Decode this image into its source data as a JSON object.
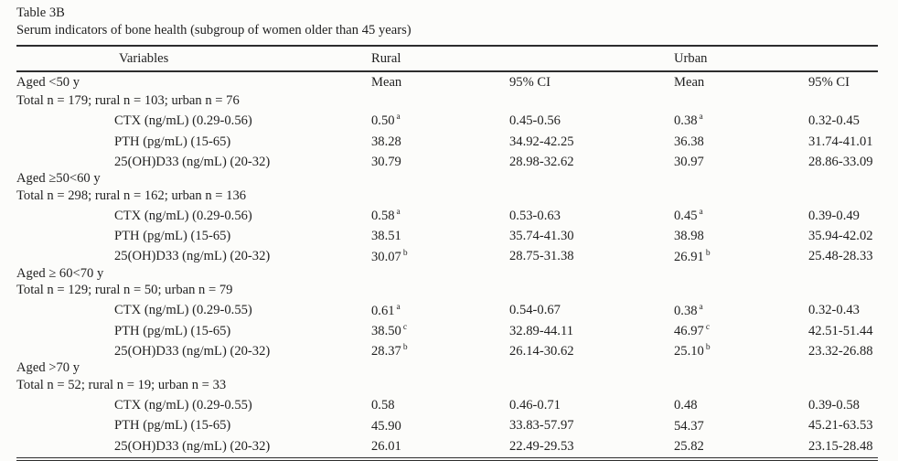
{
  "colors": {
    "background": "#fcfcfa",
    "text": "#1f1f1f",
    "rule": "#2d2d2d"
  },
  "table": {
    "title": "Table 3B",
    "subtitle": "Serum indicators of bone health (subgroup of women older than 45 years)",
    "columns": {
      "variables": "Variables",
      "rural": "Rural",
      "urban": "Urban"
    },
    "subcolumns": {
      "rural_mean": "Mean",
      "rural_ci": "95% CI",
      "urban_mean": "Mean",
      "urban_ci": "95% CI"
    },
    "groups": [
      {
        "age_label": "Aged <50 y",
        "total_label": "Total n = 179; rural n = 103; urban n = 76",
        "rows": [
          {
            "variable": "CTX (ng/mL) (0.29-0.56)",
            "rural_mean": "0.50",
            "rural_sup": "a",
            "rural_ci": "0.45-0.56",
            "urban_mean": "0.38",
            "urban_sup": "a",
            "urban_ci": "0.32-0.45"
          },
          {
            "variable": "PTH (pg/mL) (15-65)",
            "rural_mean": "38.28",
            "rural_sup": "",
            "rural_ci": "34.92-42.25",
            "urban_mean": "36.38",
            "urban_sup": "",
            "urban_ci": "31.74-41.01"
          },
          {
            "variable": "25(OH)D33 (ng/mL) (20-32)",
            "rural_mean": "30.79",
            "rural_sup": "",
            "rural_ci": "28.98-32.62",
            "urban_mean": "30.97",
            "urban_sup": "",
            "urban_ci": "28.86-33.09"
          }
        ]
      },
      {
        "age_label": "Aged ≥50<60 y",
        "total_label": "Total n = 298; rural n = 162; urban n = 136",
        "rows": [
          {
            "variable": "CTX (ng/mL) (0.29-0.56)",
            "rural_mean": "0.58",
            "rural_sup": "a",
            "rural_ci": "0.53-0.63",
            "urban_mean": "0.45",
            "urban_sup": "a",
            "urban_ci": "0.39-0.49"
          },
          {
            "variable": "PTH (pg/mL) (15-65)",
            "rural_mean": "38.51",
            "rural_sup": "",
            "rural_ci": "35.74-41.30",
            "urban_mean": "38.98",
            "urban_sup": "",
            "urban_ci": "35.94-42.02"
          },
          {
            "variable": "25(OH)D33 (ng/mL) (20-32)",
            "rural_mean": "30.07",
            "rural_sup": "b",
            "rural_ci": "28.75-31.38",
            "urban_mean": "26.91",
            "urban_sup": "b",
            "urban_ci": "25.48-28.33"
          }
        ]
      },
      {
        "age_label": "Aged ≥ 60<70 y",
        "total_label": "Total n = 129; rural n = 50; urban n = 79",
        "rows": [
          {
            "variable": "CTX (ng/mL) (0.29-0.55)",
            "rural_mean": "0.61",
            "rural_sup": "a",
            "rural_ci": "0.54-0.67",
            "urban_mean": "0.38",
            "urban_sup": "a",
            "urban_ci": "0.32-0.43"
          },
          {
            "variable": "PTH (pg/mL) (15-65)",
            "rural_mean": "38.50",
            "rural_sup": "c",
            "rural_ci": "32.89-44.11",
            "urban_mean": "46.97",
            "urban_sup": "c",
            "urban_ci": "42.51-51.44"
          },
          {
            "variable": "25(OH)D33 (ng/mL) (20-32)",
            "rural_mean": "28.37",
            "rural_sup": "b",
            "rural_ci": "26.14-30.62",
            "urban_mean": "25.10",
            "urban_sup": "b",
            "urban_ci": "23.32-26.88"
          }
        ]
      },
      {
        "age_label": "Aged >70 y",
        "total_label": "Total n = 52; rural n = 19; urban n = 33",
        "rows": [
          {
            "variable": "CTX (ng/mL) (0.29-0.55)",
            "rural_mean": "0.58",
            "rural_sup": "",
            "rural_ci": "0.46-0.71",
            "urban_mean": "0.48",
            "urban_sup": "",
            "urban_ci": "0.39-0.58"
          },
          {
            "variable": "PTH (pg/mL) (15-65)",
            "rural_mean": "45.90",
            "rural_sup": "",
            "rural_ci": "33.83-57.97",
            "urban_mean": "54.37",
            "urban_sup": "",
            "urban_ci": "45.21-63.53"
          },
          {
            "variable": "25(OH)D33 (ng/mL) (20-32)",
            "rural_mean": "26.01",
            "rural_sup": "",
            "rural_ci": "22.49-29.53",
            "urban_mean": "25.82",
            "urban_sup": "",
            "urban_ci": "23.15-28.48"
          }
        ]
      }
    ]
  }
}
